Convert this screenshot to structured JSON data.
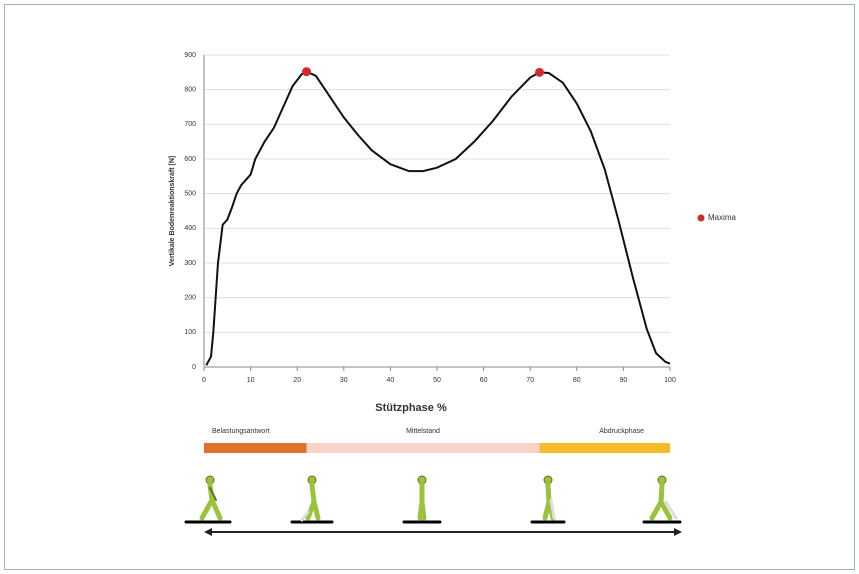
{
  "chart_data": {
    "type": "line",
    "xlabel": "Stützphase %",
    "ylabel": "Vertikale Bodenreaktionskraft [N]",
    "x": [
      0.5,
      1.5,
      2,
      3,
      4,
      5,
      6,
      7,
      8,
      9,
      10,
      11,
      13,
      15,
      17,
      19,
      21,
      22,
      24,
      27,
      30,
      33,
      36,
      40,
      44,
      47,
      50,
      54,
      58,
      62,
      66,
      70,
      72,
      74,
      77,
      80,
      83,
      86,
      89,
      92,
      95,
      97,
      99,
      100
    ],
    "values": [
      5,
      30,
      100,
      300,
      410,
      425,
      460,
      500,
      525,
      540,
      555,
      600,
      650,
      690,
      750,
      810,
      845,
      852,
      840,
      780,
      720,
      670,
      625,
      585,
      565,
      565,
      575,
      600,
      650,
      710,
      780,
      835,
      850,
      848,
      820,
      760,
      680,
      570,
      420,
      260,
      110,
      40,
      15,
      10
    ],
    "color": "#111111",
    "maxima": {
      "name": "Maxima",
      "color": "#d42a2a",
      "x": [
        22,
        72
      ],
      "values": [
        852,
        850
      ]
    },
    "xlim": [
      0,
      100
    ],
    "xticks": [
      0,
      10,
      20,
      30,
      40,
      50,
      60,
      70,
      80,
      90,
      100
    ],
    "ylim": [
      0,
      900
    ],
    "yticks": [
      0,
      100,
      200,
      300,
      400,
      500,
      600,
      700,
      800,
      900
    ],
    "grid": true,
    "phases": [
      {
        "name": "Belastungsantwort",
        "start": 0,
        "end": 22,
        "color": "#e2702a"
      },
      {
        "name": "Mittelstand",
        "start": 22,
        "end": 72,
        "color": "#f8d3cc"
      },
      {
        "name": "Abdruckphase",
        "start": 72,
        "end": 100,
        "color": "#f4bb2c"
      }
    ]
  }
}
